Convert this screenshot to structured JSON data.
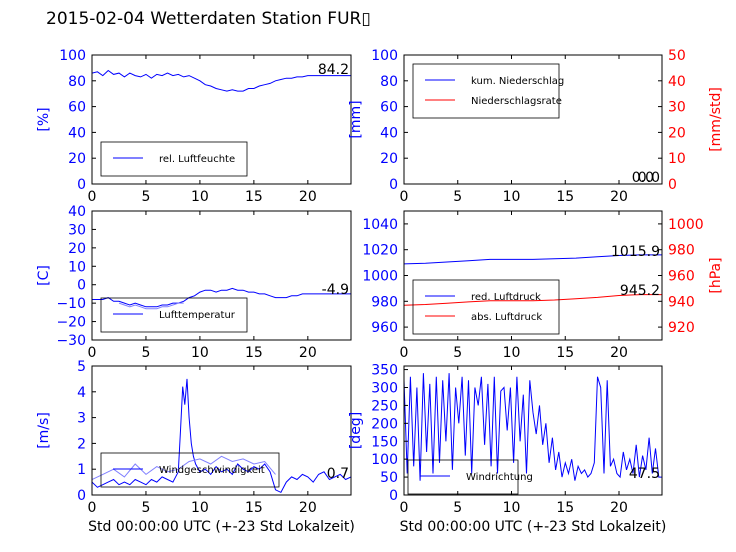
{
  "title": "2015-02-04 Wetterdaten Station FUR▯",
  "chart_data": [
    {
      "id": "humidity",
      "type": "line",
      "xlim": [
        0,
        24
      ],
      "ylim": [
        0,
        100
      ],
      "x_ticks": [
        "0",
        "5",
        "10",
        "15",
        "20"
      ],
      "y_ticks": [
        "0",
        "20",
        "40",
        "60",
        "80",
        "100"
      ],
      "ylabel": "[%]",
      "xlabel": "",
      "legend": "bottom-left",
      "last_value": "84.2",
      "series": [
        {
          "name": "rel. Luftfeuchte",
          "color": "#0000ff",
          "x": [
            0,
            0.5,
            1,
            1.5,
            2,
            2.5,
            3,
            3.5,
            4,
            4.5,
            5,
            5.5,
            6,
            6.5,
            7,
            7.5,
            8,
            8.5,
            9,
            9.5,
            10,
            10.5,
            11,
            11.5,
            12,
            12.5,
            13,
            13.5,
            14,
            14.5,
            15,
            15.5,
            16,
            16.5,
            17,
            17.5,
            18,
            18.5,
            19,
            19.5,
            20,
            20.5,
            21,
            21.5,
            22,
            22.5,
            23,
            23.5,
            24
          ],
          "y": [
            86,
            87,
            84,
            88,
            85,
            86,
            83,
            86,
            84,
            83,
            85,
            82,
            85,
            84,
            86,
            84,
            85,
            83,
            84,
            82,
            80,
            77,
            76,
            74,
            73,
            72,
            73,
            72,
            72,
            74,
            74,
            76,
            77,
            78,
            80,
            81,
            82,
            82,
            83,
            83,
            84,
            84,
            84,
            84,
            84,
            84,
            84,
            84,
            84
          ]
        }
      ]
    },
    {
      "id": "precip",
      "type": "line",
      "xlim": [
        0,
        24
      ],
      "ylim": [
        0,
        100
      ],
      "y2lim": [
        0,
        50
      ],
      "x_ticks": [
        "0",
        "5",
        "10",
        "15",
        "20"
      ],
      "y_ticks": [
        "0",
        "20",
        "40",
        "60",
        "80",
        "100"
      ],
      "y2_ticks": [
        "0",
        "10",
        "20",
        "30",
        "40",
        "50"
      ],
      "ylabel": "[mm]",
      "y2label": "[mm/std]",
      "xlabel": "",
      "legend": "top-left",
      "last_value": "0.0",
      "last_value2": "0.0",
      "series": [
        {
          "name": "kum. Niederschlag",
          "color": "#0000ff",
          "axis": "left",
          "x": [
            0,
            24
          ],
          "y": [
            0,
            0
          ]
        },
        {
          "name": "Niederschlagsrate",
          "color": "#ff0000",
          "axis": "right",
          "x": [
            0,
            24
          ],
          "y": [
            0,
            0
          ]
        }
      ]
    },
    {
      "id": "temp",
      "type": "line",
      "xlim": [
        0,
        24
      ],
      "ylim": [
        -30,
        40
      ],
      "x_ticks": [
        "0",
        "5",
        "10",
        "15",
        "20"
      ],
      "y_ticks": [
        "−30",
        "−20",
        "−10",
        "0",
        "10",
        "20",
        "30",
        "40"
      ],
      "ylabel": "[C]",
      "xlabel": "",
      "legend": "bottom-left",
      "last_value": "-4.9",
      "series": [
        {
          "name": "Lufttemperatur",
          "color": "#0000ff",
          "x": [
            0,
            0.5,
            1,
            1.5,
            2,
            2.5,
            3,
            3.5,
            4,
            4.5,
            5,
            5.5,
            6,
            6.5,
            7,
            7.5,
            8,
            8.5,
            9,
            9.5,
            10,
            10.5,
            11,
            11.5,
            12,
            12.5,
            13,
            13.5,
            14,
            14.5,
            15,
            15.5,
            16,
            16.5,
            17,
            17.5,
            18,
            18.5,
            19,
            19.5,
            20,
            20.5,
            21,
            21.5,
            22,
            22.5,
            23,
            23.5,
            24
          ],
          "y": [
            -8,
            -8,
            -8,
            -7,
            -9,
            -9,
            -10,
            -11,
            -10,
            -11,
            -12,
            -12,
            -12,
            -11,
            -11,
            -10,
            -10,
            -9,
            -7,
            -6,
            -4,
            -3,
            -3,
            -4,
            -3,
            -3,
            -2,
            -3,
            -3,
            -4,
            -4,
            -5,
            -5,
            -6,
            -7,
            -7,
            -7,
            -6,
            -6,
            -5,
            -5,
            -5,
            -5,
            -5,
            -5,
            -5,
            -5,
            -5,
            -5
          ]
        },
        {
          "name": "",
          "color": "#8080ff",
          "x": [
            2.5,
            3,
            3.5,
            4,
            4.5,
            5,
            5.5,
            6,
            6.5,
            7,
            7.5,
            8,
            8.5
          ],
          "y": [
            -10,
            -11,
            -12,
            -11,
            -12,
            -13,
            -13,
            -13,
            -12,
            -12,
            -11,
            -10,
            -10
          ]
        }
      ]
    },
    {
      "id": "pressure",
      "type": "line",
      "xlim": [
        0,
        24
      ],
      "ylim": [
        950,
        1050
      ],
      "y2lim": [
        910,
        1010
      ],
      "x_ticks": [
        "0",
        "5",
        "10",
        "15",
        "20"
      ],
      "y_ticks": [
        "960",
        "980",
        "1000",
        "1020",
        "1040"
      ],
      "y2_ticks": [
        "920",
        "940",
        "960",
        "980",
        "1000"
      ],
      "ylabel": "",
      "y2label": "[hPa]",
      "xlabel": "",
      "legend": "bottom-left",
      "last_value": "1015.9",
      "last_value2": "945.2",
      "series": [
        {
          "name": "red. Luftdruck",
          "color": "#0000ff",
          "axis": "left",
          "x": [
            0,
            2,
            4,
            6,
            8,
            10,
            12,
            14,
            16,
            18,
            20,
            22,
            24
          ],
          "y": [
            1009,
            1009.5,
            1010.5,
            1011.5,
            1012.5,
            1012.5,
            1012.5,
            1013,
            1013.5,
            1014.5,
            1015.5,
            1016,
            1016
          ]
        },
        {
          "name": "abs. Luftdruck",
          "color": "#ff0000",
          "axis": "right",
          "x": [
            0,
            2,
            4,
            6,
            8,
            10,
            12,
            14,
            16,
            18,
            20,
            22,
            24
          ],
          "y": [
            937,
            937.5,
            938.5,
            939.5,
            940.5,
            940.5,
            940.5,
            941,
            942,
            943,
            944.5,
            945.2,
            945.2
          ]
        }
      ]
    },
    {
      "id": "wind",
      "type": "line",
      "xlim": [
        0,
        24
      ],
      "ylim": [
        0,
        5
      ],
      "x_ticks": [
        "0",
        "5",
        "10",
        "15",
        "20"
      ],
      "y_ticks": [
        "0",
        "1",
        "2",
        "3",
        "4",
        "5"
      ],
      "ylabel": "[m/s]",
      "xlabel": "Std 00:00:00 UTC (+-23 Std Lokalzeit)",
      "legend": "bottom-left",
      "last_value": "0.7",
      "series": [
        {
          "name": "Windgeschwindigkeit",
          "color": "#0000ff",
          "x": [
            0,
            0.5,
            1,
            1.5,
            2,
            2.5,
            3,
            3.5,
            4,
            4.5,
            5,
            5.5,
            6,
            6.5,
            7,
            7.5,
            8,
            8.2,
            8.4,
            8.6,
            8.8,
            9,
            9.2,
            9.4,
            9.6,
            10,
            10.5,
            11,
            11.5,
            12,
            12.5,
            13,
            13.5,
            14,
            14.5,
            15,
            15.5,
            16,
            16.5,
            17,
            17.5,
            18,
            18.5,
            19,
            19.5,
            20,
            20.5,
            21,
            21.5,
            22,
            22.5,
            23,
            23.5,
            24
          ],
          "y": [
            0.5,
            0.3,
            0.4,
            0.5,
            0.6,
            0.4,
            0.5,
            0.4,
            0.6,
            0.5,
            0.4,
            0.6,
            0.5,
            0.7,
            0.6,
            0.5,
            0.9,
            2.5,
            4.2,
            3.5,
            4.5,
            3.0,
            2.0,
            1.5,
            1.2,
            0.9,
            1.0,
            0.8,
            1.1,
            0.9,
            1.0,
            0.8,
            1.2,
            1.0,
            0.9,
            1.1,
            1.0,
            1.2,
            0.9,
            0.2,
            0.1,
            0.5,
            0.7,
            0.6,
            0.8,
            0.7,
            0.5,
            0.8,
            0.9,
            0.6,
            0.7,
            0.8,
            0.6,
            0.7
          ]
        },
        {
          "name": "",
          "color": "#8080ff",
          "x": [
            0,
            1,
            2,
            3,
            4,
            5,
            6,
            7,
            8,
            9,
            10,
            11,
            12,
            13,
            14,
            15,
            16,
            17
          ],
          "y": [
            0.6,
            0.8,
            1.0,
            0.7,
            1.2,
            0.8,
            1.1,
            0.9,
            1.0,
            1.3,
            1.4,
            1.2,
            1.5,
            1.3,
            1.4,
            1.2,
            1.3,
            0.8
          ]
        }
      ]
    },
    {
      "id": "winddir",
      "type": "line",
      "xlim": [
        0,
        24
      ],
      "ylim": [
        0,
        360
      ],
      "x_ticks": [
        "0",
        "5",
        "10",
        "15",
        "20"
      ],
      "y_ticks": [
        "0",
        "50",
        "100",
        "150",
        "200",
        "250",
        "300",
        "350"
      ],
      "ylabel": "[deg]",
      "xlabel": "Std 00:00:00 UTC (+-23 Std Lokalzeit)",
      "legend": "bottom-left",
      "last_value": "47.5",
      "series": [
        {
          "name": "Windrichtung",
          "color": "#0000ff",
          "x": [
            0,
            0.3,
            0.6,
            0.9,
            1.2,
            1.5,
            1.8,
            2.1,
            2.4,
            2.7,
            3,
            3.3,
            3.6,
            3.9,
            4.2,
            4.5,
            4.8,
            5.1,
            5.4,
            5.7,
            6,
            6.3,
            6.6,
            6.9,
            7.2,
            7.5,
            7.8,
            8.1,
            8.4,
            8.7,
            9,
            9.3,
            9.6,
            9.9,
            10.2,
            10.5,
            10.8,
            11.1,
            11.4,
            11.7,
            12,
            12.3,
            12.6,
            12.9,
            13.2,
            13.5,
            13.8,
            14.1,
            14.4,
            14.7,
            15,
            15.3,
            15.6,
            15.9,
            16.2,
            16.5,
            16.8,
            17.1,
            17.4,
            17.7,
            18,
            18.3,
            18.6,
            18.9,
            19.2,
            19.5,
            19.8,
            20.1,
            20.4,
            20.7,
            21,
            21.3,
            21.6,
            21.9,
            22.2,
            22.5,
            22.8,
            23.1,
            23.4,
            23.7,
            24
          ],
          "y": [
            320,
            60,
            330,
            80,
            300,
            40,
            340,
            120,
            310,
            60,
            330,
            90,
            320,
            150,
            340,
            70,
            300,
            200,
            330,
            110,
            320,
            60,
            300,
            250,
            330,
            140,
            310,
            80,
            330,
            60,
            290,
            300,
            180,
            300,
            90,
            330,
            150,
            280,
            60,
            320,
            230,
            170,
            250,
            140,
            200,
            90,
            160,
            70,
            120,
            50,
            90,
            60,
            100,
            40,
            80,
            60,
            70,
            50,
            60,
            90,
            330,
            300,
            60,
            320,
            80,
            100,
            60,
            50,
            120,
            70,
            100,
            60,
            140,
            50,
            110,
            70,
            160,
            60,
            130,
            50,
            50
          ]
        }
      ]
    }
  ]
}
